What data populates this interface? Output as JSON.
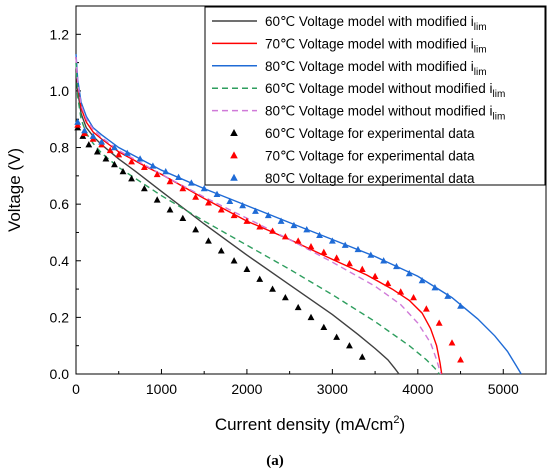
{
  "chart_data": {
    "type": "line",
    "title": "",
    "caption": "(a)",
    "xlabel": "Current density (mA/cm",
    "xlabel_sup": "2",
    "xlabel_close": ")",
    "ylabel": "Voltage (V)",
    "xlim": [
      0,
      5500
    ],
    "ylim": [
      0,
      1.3
    ],
    "x_ticks": [
      0,
      1000,
      2000,
      3000,
      4000,
      5000
    ],
    "x_tick_labels": [
      "0",
      "1000",
      "2000",
      "3000",
      "4000",
      "5000"
    ],
    "y_ticks": [
      0.0,
      0.2,
      0.4,
      0.6,
      0.8,
      1.0,
      1.2
    ],
    "y_tick_labels": [
      "0.0",
      "0.2",
      "0.4",
      "0.6",
      "0.8",
      "1.0",
      "1.2"
    ],
    "grid": false,
    "legend_position": "top-right",
    "series": [
      {
        "name": "60℃ Voltage model with modified i",
        "sub": "lim",
        "kind": "line",
        "color": "#404040",
        "dash": "",
        "x": [
          0,
          20,
          60,
          120,
          200,
          300,
          400,
          500,
          700,
          1000,
          1500,
          2000,
          2500,
          3000,
          3300,
          3500,
          3650,
          3730,
          3780
        ],
        "y": [
          1.12,
          1.0,
          0.92,
          0.87,
          0.84,
          0.81,
          0.785,
          0.76,
          0.715,
          0.645,
          0.53,
          0.42,
          0.315,
          0.21,
          0.14,
          0.09,
          0.05,
          0.02,
          0.0
        ]
      },
      {
        "name": "70℃ Voltage model with modified i",
        "sub": "lim",
        "kind": "line",
        "color": "#ff0000",
        "dash": "",
        "x": [
          0,
          20,
          60,
          120,
          200,
          300,
          500,
          800,
          1000,
          1500,
          2000,
          2500,
          3000,
          3400,
          3700,
          3900,
          4050,
          4150,
          4220,
          4260,
          4280
        ],
        "y": [
          1.12,
          1.02,
          0.94,
          0.89,
          0.855,
          0.83,
          0.785,
          0.735,
          0.705,
          0.62,
          0.54,
          0.475,
          0.405,
          0.35,
          0.3,
          0.26,
          0.215,
          0.16,
          0.1,
          0.04,
          0.0
        ]
      },
      {
        "name": "80℃ Voltage model with modified i",
        "sub": "lim",
        "kind": "line",
        "color": "#1f6bd6",
        "dash": "",
        "x": [
          0,
          20,
          60,
          120,
          200,
          300,
          500,
          1000,
          1500,
          2000,
          2500,
          3000,
          3500,
          4000,
          4400,
          4700,
          4900,
          5050,
          5150,
          5210
        ],
        "y": [
          1.13,
          1.04,
          0.96,
          0.91,
          0.87,
          0.845,
          0.8,
          0.72,
          0.655,
          0.595,
          0.535,
          0.475,
          0.415,
          0.345,
          0.27,
          0.195,
          0.135,
          0.08,
          0.03,
          0.0
        ]
      },
      {
        "name": "60℃ Voltage model without modified i",
        "sub": "lim",
        "kind": "line",
        "color": "#2e9e5e",
        "dash": "6,4",
        "x": [
          0,
          20,
          60,
          120,
          200,
          300,
          500,
          1000,
          1500,
          2000,
          2500,
          3000,
          3500,
          3900,
          4100,
          4200,
          4250
        ],
        "y": [
          1.1,
          0.98,
          0.9,
          0.85,
          0.815,
          0.78,
          0.73,
          0.63,
          0.54,
          0.455,
          0.37,
          0.28,
          0.185,
          0.1,
          0.05,
          0.02,
          0.0
        ]
      },
      {
        "name": "80℃ Voltage model without modified i",
        "sub": "lim",
        "kind": "line",
        "color": "#d07ad8",
        "dash": "6,4",
        "x": [
          0,
          20,
          60,
          120,
          200,
          300,
          500,
          1000,
          1500,
          2000,
          2500,
          3000,
          3500,
          3800,
          4000,
          4150,
          4220,
          4270
        ],
        "y": [
          1.12,
          1.03,
          0.95,
          0.9,
          0.865,
          0.835,
          0.79,
          0.705,
          0.625,
          0.55,
          0.475,
          0.395,
          0.31,
          0.245,
          0.18,
          0.11,
          0.05,
          0.0
        ]
      },
      {
        "name": "60℃ Voltage for experimental data",
        "kind": "scatter",
        "color": "#000000",
        "x": [
          20,
          80,
          150,
          250,
          350,
          450,
          550,
          650,
          800,
          950,
          1100,
          1250,
          1400,
          1550,
          1700,
          1850,
          2000,
          2150,
          2300,
          2450,
          2600,
          2750,
          2900,
          3050,
          3200,
          3350
        ],
        "y": [
          0.87,
          0.84,
          0.81,
          0.785,
          0.76,
          0.74,
          0.715,
          0.69,
          0.655,
          0.615,
          0.58,
          0.55,
          0.51,
          0.47,
          0.435,
          0.4,
          0.37,
          0.335,
          0.3,
          0.27,
          0.235,
          0.2,
          0.165,
          0.13,
          0.1,
          0.06
        ]
      },
      {
        "name": "70℃ Voltage for experimental data",
        "kind": "scatter",
        "color": "#ff0000",
        "x": [
          20,
          100,
          200,
          300,
          400,
          500,
          650,
          800,
          950,
          1100,
          1250,
          1400,
          1550,
          1700,
          1850,
          2000,
          2150,
          2300,
          2450,
          2600,
          2750,
          2900,
          3050,
          3200,
          3350,
          3500,
          3650,
          3800,
          3950,
          4100,
          4250,
          4400,
          4500
        ],
        "y": [
          0.88,
          0.85,
          0.83,
          0.81,
          0.79,
          0.775,
          0.75,
          0.73,
          0.705,
          0.68,
          0.655,
          0.625,
          0.605,
          0.58,
          0.56,
          0.54,
          0.52,
          0.505,
          0.485,
          0.47,
          0.45,
          0.43,
          0.41,
          0.39,
          0.37,
          0.345,
          0.32,
          0.29,
          0.27,
          0.23,
          0.18,
          0.11,
          0.05
        ]
      },
      {
        "name": "80℃ Voltage for experimental data",
        "kind": "scatter",
        "color": "#1f6bd6",
        "x": [
          20,
          100,
          200,
          300,
          450,
          600,
          750,
          900,
          1050,
          1200,
          1350,
          1500,
          1650,
          1800,
          1950,
          2100,
          2250,
          2400,
          2550,
          2700,
          2850,
          3000,
          3150,
          3300,
          3450,
          3600,
          3750,
          3900,
          4050,
          4200,
          4350,
          4500
        ],
        "y": [
          0.89,
          0.86,
          0.84,
          0.82,
          0.8,
          0.78,
          0.76,
          0.735,
          0.715,
          0.695,
          0.675,
          0.655,
          0.635,
          0.61,
          0.595,
          0.575,
          0.56,
          0.54,
          0.525,
          0.51,
          0.49,
          0.47,
          0.455,
          0.44,
          0.42,
          0.4,
          0.38,
          0.355,
          0.33,
          0.305,
          0.275,
          0.24
        ]
      }
    ]
  }
}
